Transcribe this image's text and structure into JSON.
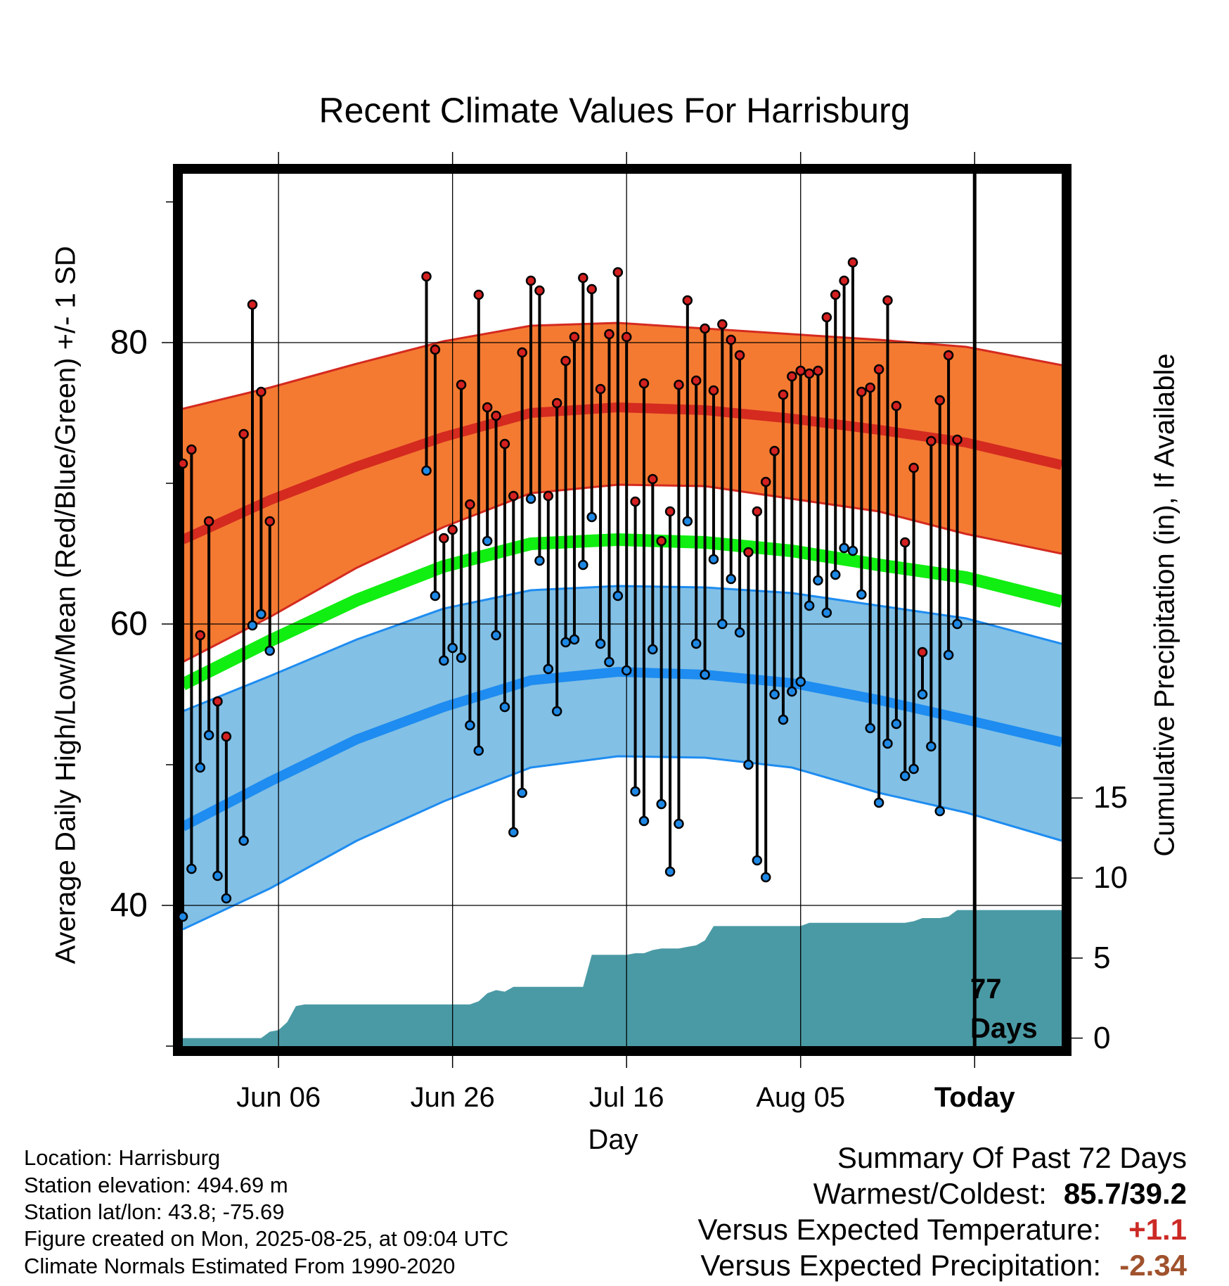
{
  "colors": {
    "high_band": "#f47a32",
    "high_edge": "#d42a1f",
    "mean_line": "#11ee11",
    "low_band": "#82c0e6",
    "low_edge": "#1e8cf0",
    "precip": "#4a9aa5",
    "high_dot": "#d42020",
    "low_dot": "#1e88e5",
    "frame": "#000000",
    "temp_anomaly": "#cc2a26",
    "precip_anomaly": "#a0522d"
  },
  "chart_data": {
    "type": "line",
    "title": "Recent Climate Values For Harrisburg",
    "xlabel": "Day",
    "ylabel": "Average Daily High/Low/Mean (Red/Blue/Green) +/- 1 SD",
    "y2label": "Cumulative Precipitation (in), If Available",
    "x_tick_labels": [
      "Jun 06",
      "Jun 26",
      "Jul 16",
      "Aug 05",
      "Today"
    ],
    "x_tick_days": [
      11,
      31,
      51,
      71,
      91
    ],
    "x_range_days": [
      0,
      101
    ],
    "ylim": [
      30,
      92
    ],
    "y_ticks": [
      40,
      60,
      80
    ],
    "y2lim": [
      -0.5,
      54
    ],
    "y2_ticks": [
      0,
      5,
      10,
      15
    ],
    "grid": true,
    "today_day": 91,
    "days_label": "77\nDays",
    "normals": {
      "day": [
        0,
        10,
        20,
        30,
        40,
        50,
        60,
        70,
        80,
        90,
        101
      ],
      "high_mean": [
        66.0,
        68.8,
        71.2,
        73.3,
        75.0,
        75.4,
        75.2,
        74.6,
        73.8,
        72.9,
        71.3
      ],
      "high_upper": [
        75.3,
        76.8,
        78.5,
        80.1,
        81.2,
        81.4,
        81.0,
        80.6,
        80.2,
        79.7,
        78.4
      ],
      "high_lower": [
        57.3,
        60.5,
        64.0,
        66.9,
        69.3,
        69.9,
        69.8,
        68.9,
        68.0,
        66.4,
        65.0
      ],
      "mean": [
        55.7,
        58.8,
        61.7,
        64.1,
        65.7,
        66.0,
        65.8,
        65.2,
        64.2,
        63.3,
        61.6
      ],
      "low_mean": [
        45.6,
        48.8,
        51.8,
        54.1,
        56.0,
        56.6,
        56.4,
        55.8,
        54.6,
        53.2,
        51.6
      ],
      "low_upper": [
        53.8,
        56.3,
        58.9,
        61.1,
        62.4,
        62.7,
        62.6,
        62.2,
        61.3,
        60.4,
        58.6
      ],
      "low_lower": [
        38.3,
        41.2,
        44.6,
        47.4,
        49.8,
        50.6,
        50.5,
        49.8,
        48.0,
        46.6,
        44.6
      ]
    },
    "series": [
      {
        "name": "Daily High",
        "day": [
          0,
          1,
          2,
          3,
          4,
          5,
          7,
          8,
          9,
          10,
          11,
          28,
          29,
          30,
          31,
          32,
          33,
          34,
          35,
          36,
          37,
          38,
          39,
          40,
          41,
          42,
          43,
          44,
          45,
          46,
          47,
          48,
          49,
          50,
          51,
          52,
          53,
          54,
          55,
          56,
          57,
          58,
          59,
          60,
          61,
          62,
          63,
          64,
          65,
          66,
          67,
          68,
          69,
          70,
          71,
          72,
          73,
          74,
          75,
          76,
          77,
          78,
          79,
          80,
          81,
          82,
          83,
          84,
          85,
          86,
          87,
          88,
          89,
          90
        ],
        "values": [
          71.4,
          72.4,
          59.2,
          67.3,
          54.5,
          52.0,
          73.5,
          82.7,
          76.5,
          67.3,
          null,
          84.7,
          79.5,
          66.1,
          66.7,
          77.0,
          68.5,
          83.4,
          75.4,
          74.8,
          72.8,
          69.1,
          79.3,
          84.4,
          83.7,
          69.1,
          75.7,
          78.7,
          80.4,
          84.6,
          83.8,
          76.7,
          80.6,
          85.0,
          80.4,
          68.7,
          77.1,
          70.3,
          65.9,
          68.0,
          77.0,
          83.0,
          77.3,
          81.0,
          76.6,
          81.3,
          80.2,
          79.1,
          65.1,
          68.0,
          70.1,
          72.3,
          76.3,
          77.6,
          78.0,
          77.8,
          78.0,
          81.8,
          83.4,
          84.4,
          85.7,
          76.5,
          76.8,
          78.1,
          83.0,
          75.5,
          65.8,
          71.1,
          58.0,
          73.0,
          75.9,
          79.1,
          73.1,
          null
        ]
      },
      {
        "name": "Daily Low",
        "day": [
          0,
          1,
          2,
          3,
          4,
          5,
          7,
          8,
          9,
          10,
          11,
          28,
          29,
          30,
          31,
          32,
          33,
          34,
          35,
          36,
          37,
          38,
          39,
          40,
          41,
          42,
          43,
          44,
          45,
          46,
          47,
          48,
          49,
          50,
          51,
          52,
          53,
          54,
          55,
          56,
          57,
          58,
          59,
          60,
          61,
          62,
          63,
          64,
          65,
          66,
          67,
          68,
          69,
          70,
          71,
          72,
          73,
          74,
          75,
          76,
          77,
          78,
          79,
          80,
          81,
          82,
          83,
          84,
          85,
          86,
          87,
          88,
          89,
          90
        ],
        "values": [
          39.2,
          42.6,
          49.8,
          52.1,
          42.1,
          40.5,
          44.6,
          59.9,
          60.7,
          58.1,
          null,
          70.9,
          62.0,
          57.4,
          58.3,
          57.6,
          52.8,
          51.0,
          65.9,
          59.2,
          54.1,
          45.2,
          48.0,
          68.9,
          64.5,
          56.8,
          53.8,
          58.7,
          58.9,
          64.2,
          67.6,
          58.6,
          57.3,
          62.0,
          56.7,
          48.1,
          46.0,
          58.2,
          47.2,
          42.4,
          45.8,
          67.3,
          58.6,
          56.4,
          64.6,
          60.0,
          63.2,
          59.4,
          50.0,
          43.2,
          42.0,
          55.0,
          53.2,
          55.2,
          55.9,
          61.3,
          63.1,
          60.8,
          63.5,
          65.4,
          65.2,
          62.1,
          52.6,
          47.3,
          51.5,
          52.9,
          49.2,
          49.7,
          55.0,
          51.3,
          46.7,
          57.8,
          60.0,
          null
        ]
      },
      {
        "name": "Cumulative Precipitation",
        "day": [
          0,
          9,
          10,
          11,
          12,
          13,
          14,
          33,
          34,
          35,
          36,
          37,
          38,
          39,
          46,
          47,
          48,
          51,
          52,
          53,
          54,
          55,
          56,
          57,
          58,
          59,
          60,
          61,
          62,
          63,
          64,
          71,
          72,
          78,
          80,
          83,
          84,
          85,
          86,
          87,
          88,
          89,
          90,
          101
        ],
        "values": [
          0,
          0,
          0.4,
          0.5,
          1.0,
          2.0,
          2.1,
          2.1,
          2.3,
          2.8,
          3.0,
          2.9,
          3.2,
          3.2,
          3.2,
          5.2,
          5.2,
          5.2,
          5.3,
          5.3,
          5.5,
          5.6,
          5.6,
          5.6,
          5.7,
          5.8,
          6.1,
          7.0,
          7.0,
          7.0,
          7.0,
          7.0,
          7.2,
          7.2,
          7.2,
          7.2,
          7.3,
          7.5,
          7.5,
          7.5,
          7.6,
          8.0,
          8.0,
          8.0
        ]
      }
    ]
  },
  "info": {
    "location": "Location: Harrisburg",
    "elevation": "Station elevation: 494.69 m",
    "latlon": "Station lat/lon: 43.8; -75.69",
    "created": "Figure created on Mon, 2025-08-25, at 09:04 UTC",
    "normals": "Climate Normals Estimated From 1990-2020"
  },
  "summary": {
    "title": "Summary Of Past 72 Days",
    "warm_cold_label": "Warmest/Coldest:",
    "warm_cold_value": "85.7/39.2",
    "temp_label": "Versus Expected Temperature:",
    "temp_value": "+1.1",
    "precip_label": "Versus Expected Precipitation:",
    "precip_value": "-2.34"
  }
}
